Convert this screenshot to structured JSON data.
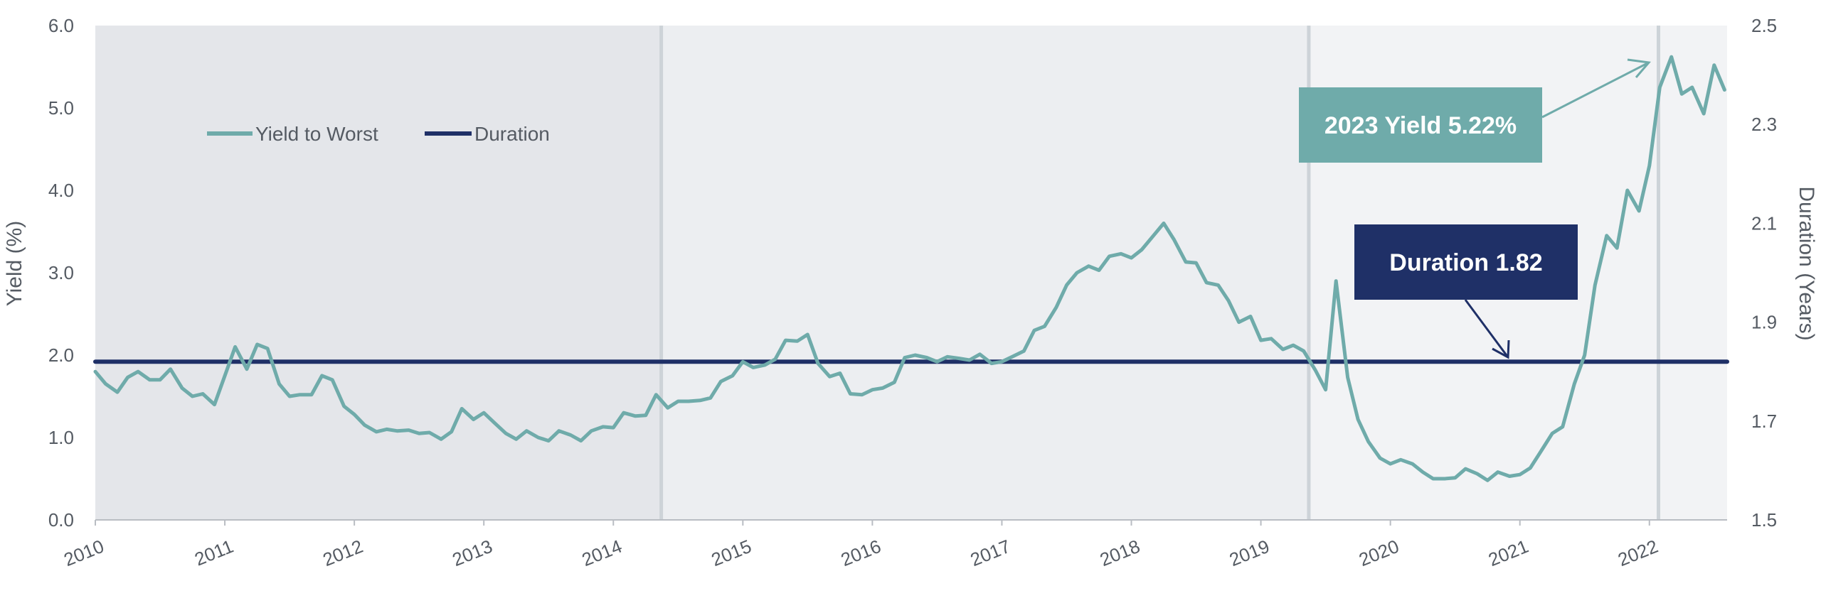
{
  "chart_data": {
    "type": "line",
    "ylabel": "Yield (%)",
    "y2label": "Duration (Years)",
    "ylim": [
      0,
      6
    ],
    "y2lim": [
      1.5,
      2.5
    ],
    "y_ticks": [
      "0.0",
      "1.0",
      "2.0",
      "3.0",
      "4.0",
      "5.0",
      "6.0"
    ],
    "y2_ticks": [
      "1.5",
      "1.7",
      "1.9",
      "2.1",
      "2.3",
      "2.5"
    ],
    "x_ticks": [
      "2010",
      "2011",
      "2012",
      "2013",
      "2014",
      "2015",
      "2016",
      "2017",
      "2018",
      "2019",
      "2020",
      "2021",
      "2022"
    ],
    "xlim": [
      2010,
      2022.6
    ],
    "legend_position": "top-left",
    "shaded_periods": [
      {
        "start": 2010,
        "end": 2014.37,
        "color": "#e4e6ea"
      },
      {
        "start": 2014.37,
        "end": 2019.37,
        "color": "#eceef1"
      },
      {
        "start": 2019.37,
        "end": 2022.6,
        "color": "#f2f3f5"
      }
    ],
    "vertical_markers": [
      2014.37,
      2019.37,
      2022.07
    ],
    "series": [
      {
        "name": "Yield to Worst",
        "axis": "left",
        "color": "#6fabaa",
        "x": [
          2010,
          2010.08,
          2010.17,
          2010.25,
          2010.33,
          2010.42,
          2010.5,
          2010.58,
          2010.67,
          2010.75,
          2010.83,
          2010.92,
          2011,
          2011.08,
          2011.17,
          2011.25,
          2011.33,
          2011.42,
          2011.5,
          2011.58,
          2011.67,
          2011.75,
          2011.83,
          2011.92,
          2012,
          2012.08,
          2012.17,
          2012.25,
          2012.33,
          2012.42,
          2012.5,
          2012.58,
          2012.67,
          2012.75,
          2012.83,
          2012.92,
          2013,
          2013.08,
          2013.17,
          2013.25,
          2013.33,
          2013.42,
          2013.5,
          2013.58,
          2013.67,
          2013.75,
          2013.83,
          2013.92,
          2014,
          2014.08,
          2014.17,
          2014.25,
          2014.33,
          2014.42,
          2014.5,
          2014.58,
          2014.67,
          2014.75,
          2014.83,
          2014.92,
          2015,
          2015.08,
          2015.17,
          2015.25,
          2015.33,
          2015.42,
          2015.5,
          2015.58,
          2015.67,
          2015.75,
          2015.83,
          2015.92,
          2016,
          2016.08,
          2016.17,
          2016.25,
          2016.33,
          2016.42,
          2016.5,
          2016.58,
          2016.67,
          2016.75,
          2016.83,
          2016.92,
          2017,
          2017.08,
          2017.17,
          2017.25,
          2017.33,
          2017.42,
          2017.5,
          2017.58,
          2017.67,
          2017.75,
          2017.83,
          2017.92,
          2018,
          2018.08,
          2018.17,
          2018.25,
          2018.33,
          2018.42,
          2018.5,
          2018.58,
          2018.67,
          2018.75,
          2018.83,
          2018.92,
          2019,
          2019.08,
          2019.17,
          2019.25,
          2019.33,
          2019.42,
          2019.5,
          2019.58,
          2019.67,
          2019.75,
          2019.83,
          2019.92,
          2020,
          2020.08,
          2020.17,
          2020.25,
          2020.33,
          2020.42,
          2020.5,
          2020.58,
          2020.67,
          2020.75,
          2020.83,
          2020.92,
          2021,
          2021.08,
          2021.17,
          2021.25,
          2021.33,
          2021.42,
          2021.5,
          2021.58,
          2021.67,
          2021.75,
          2021.83,
          2021.92,
          2022,
          2022.08,
          2022.17,
          2022.25,
          2022.33,
          2022.42,
          2022.5,
          2022.58
        ],
        "y": [
          1.8,
          1.65,
          1.55,
          1.73,
          1.8,
          1.7,
          1.7,
          1.83,
          1.6,
          1.5,
          1.53,
          1.4,
          1.75,
          2.1,
          1.83,
          2.13,
          2.08,
          1.65,
          1.5,
          1.52,
          1.52,
          1.75,
          1.7,
          1.38,
          1.28,
          1.15,
          1.07,
          1.1,
          1.08,
          1.09,
          1.05,
          1.06,
          0.98,
          1.07,
          1.35,
          1.22,
          1.3,
          1.18,
          1.05,
          0.98,
          1.08,
          1.0,
          0.96,
          1.08,
          1.03,
          0.96,
          1.08,
          1.13,
          1.12,
          1.3,
          1.26,
          1.27,
          1.52,
          1.36,
          1.44,
          1.44,
          1.45,
          1.48,
          1.68,
          1.75,
          1.92,
          1.85,
          1.88,
          1.95,
          2.18,
          2.17,
          2.25,
          1.9,
          1.74,
          1.78,
          1.53,
          1.52,
          1.58,
          1.6,
          1.67,
          1.97,
          2.0,
          1.97,
          1.92,
          1.98,
          1.96,
          1.94,
          2.01,
          1.9,
          1.92,
          1.98,
          2.05,
          2.3,
          2.35,
          2.58,
          2.85,
          3.0,
          3.08,
          3.03,
          3.2,
          3.23,
          3.18,
          3.28,
          3.45,
          3.6,
          3.4,
          3.13,
          3.12,
          2.88,
          2.85,
          2.66,
          2.4,
          2.47,
          2.18,
          2.2,
          2.07,
          2.12,
          2.05,
          1.82,
          1.58,
          2.9,
          1.73,
          1.22,
          0.95,
          0.75,
          0.68,
          0.73,
          0.68,
          0.58,
          0.5,
          0.5,
          0.51,
          0.62,
          0.56,
          0.48,
          0.58,
          0.53,
          0.55,
          0.63,
          0.85,
          1.05,
          1.13,
          1.65,
          2.0,
          2.85,
          3.45,
          3.3,
          4.0,
          3.75,
          4.3,
          5.25,
          5.62,
          5.17,
          5.25,
          4.93,
          5.52,
          5.22
        ]
      },
      {
        "name": "Duration",
        "axis": "right",
        "color": "#1f3067",
        "x": [
          2010,
          2022.6
        ],
        "y": [
          1.82,
          1.82
        ]
      }
    ],
    "annotations": [
      {
        "text": "2023 Yield 5.22%",
        "box_color": "#6fabaa",
        "points_to": [
          2022.0,
          5.5
        ]
      },
      {
        "text": "Duration 1.82",
        "box_color": "#1f3067",
        "points_to": [
          2020.9,
          1.82
        ]
      }
    ]
  }
}
